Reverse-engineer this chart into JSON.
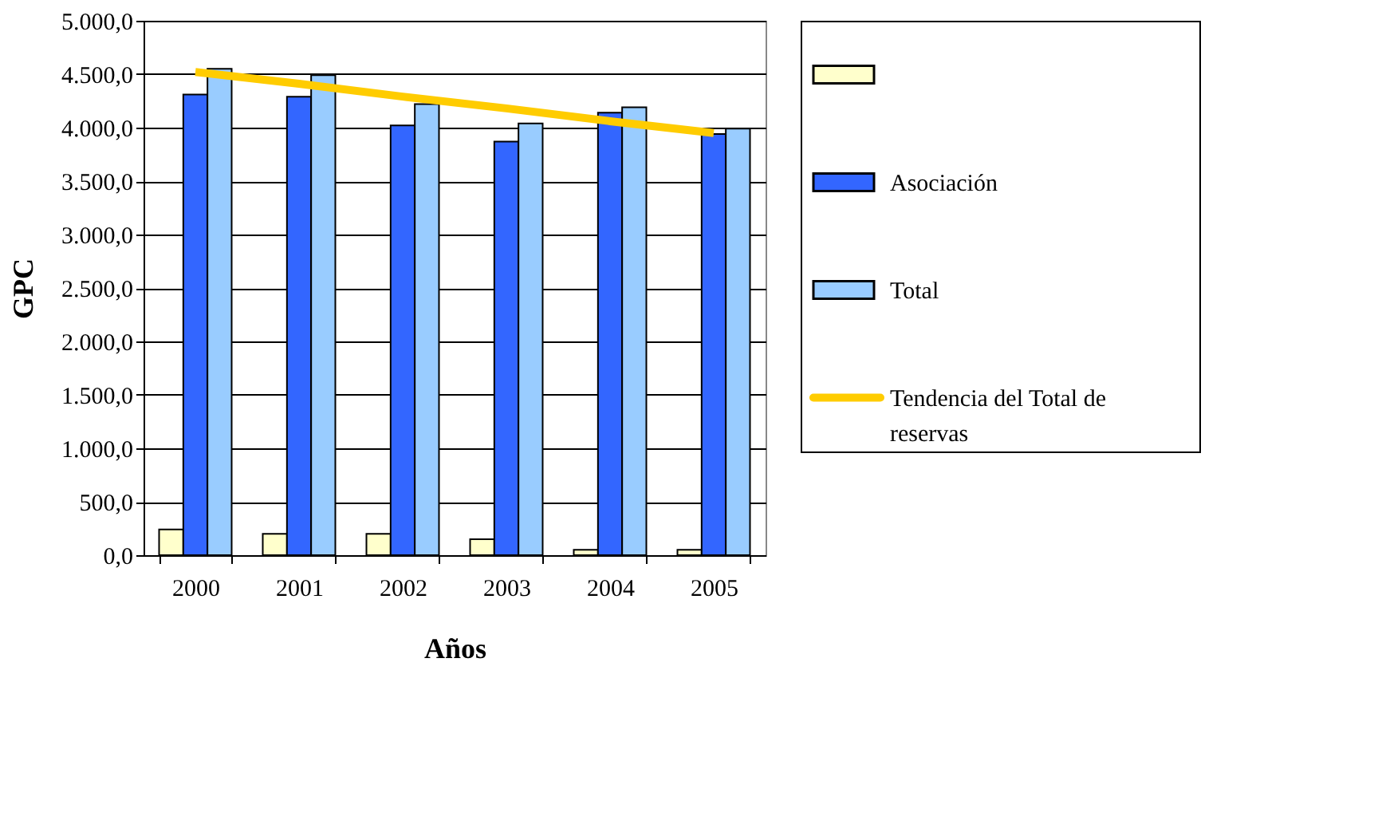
{
  "chart_data": {
    "type": "bar",
    "xlabel": "Años",
    "ylabel": "GPC",
    "categories": [
      "2000",
      "2001",
      "2002",
      "2003",
      "2004",
      "2005"
    ],
    "series": [
      {
        "color": "#ffffcc",
        "values": [
          240,
          200,
          200,
          150,
          50,
          50
        ]
      },
      {
        "name": "Asociación",
        "color": "#3366ff",
        "values": [
          4310,
          4290,
          4020,
          3870,
          4140,
          3940
        ]
      },
      {
        "name": "Total",
        "color": "#99ccff",
        "values": [
          4550,
          4490,
          4220,
          4040,
          4190,
          3990
        ]
      },
      {
        "name": "Tendencia del Total de reservas",
        "type": "line",
        "color": "#ffcc00",
        "values": [
          4520,
          4410,
          4290,
          4180,
          4060,
          3950
        ]
      }
    ],
    "ylim": [
      0,
      5000
    ],
    "yticks": [
      {
        "value": 0,
        "label": "0,0"
      },
      {
        "value": 500,
        "label": "500,0"
      },
      {
        "value": 1000,
        "label": "1.000,0"
      },
      {
        "value": 1500,
        "label": "1.500,0"
      },
      {
        "value": 2000,
        "label": "2.000,0"
      },
      {
        "value": 2500,
        "label": "2.500,0"
      },
      {
        "value": 3000,
        "label": "3.000,0"
      },
      {
        "value": 3500,
        "label": "3.500,0"
      },
      {
        "value": 4000,
        "label": "4.000,0"
      },
      {
        "value": 4500,
        "label": "4.500,0"
      },
      {
        "value": 5000,
        "label": "5.000,0"
      }
    ],
    "grid": "y",
    "legend": "right"
  }
}
